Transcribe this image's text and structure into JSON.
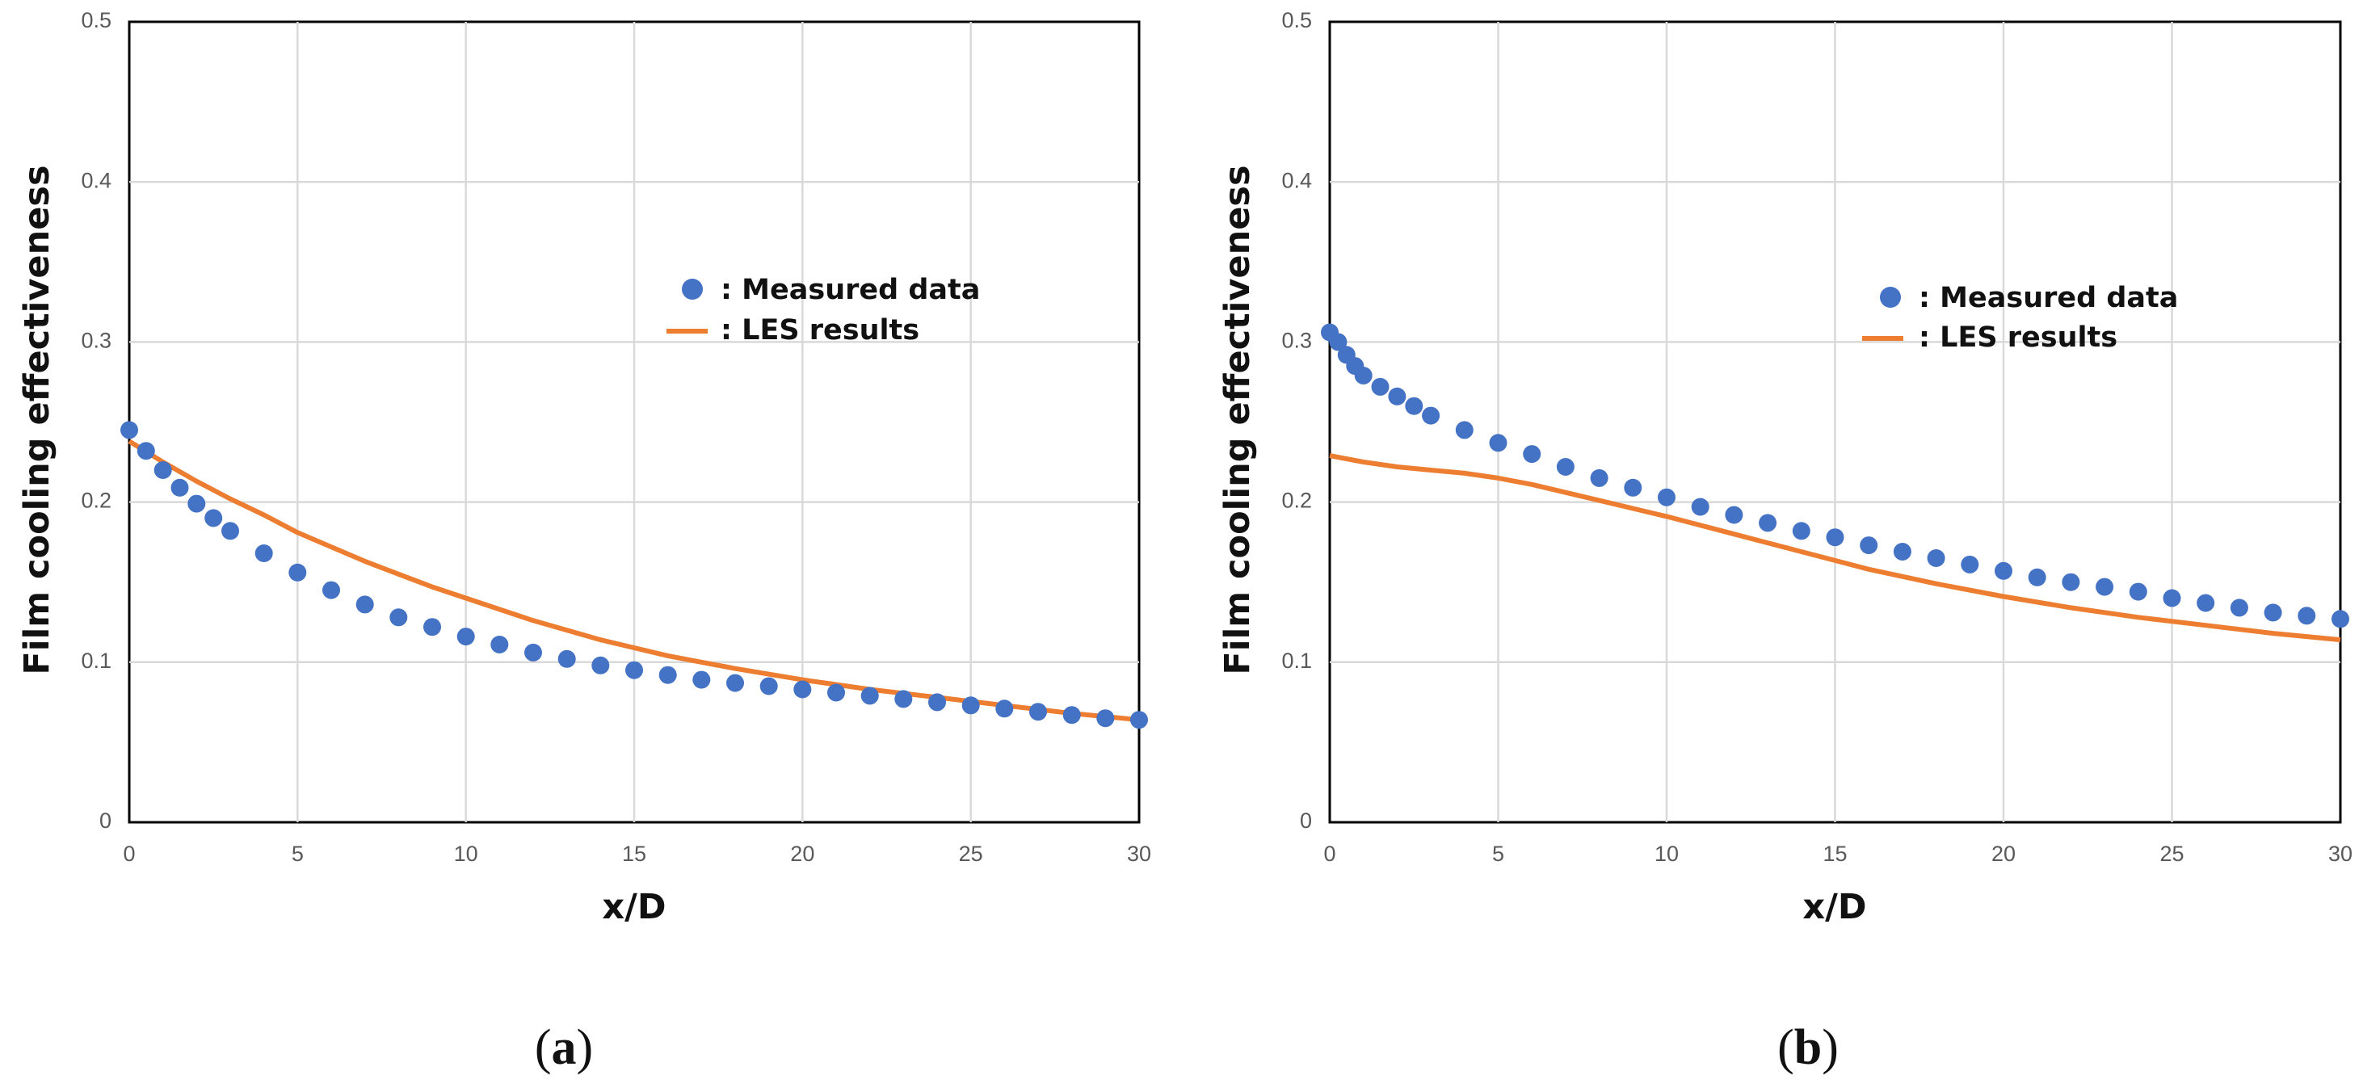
{
  "chart_data": [
    {
      "type": "scatter",
      "panel_label": {
        "open": "(",
        "letter": "a",
        "close": ")"
      },
      "xlabel": "x/D",
      "ylabel": "Film cooling effectiveness",
      "xlim": [
        0,
        30
      ],
      "ylim": [
        0,
        0.5
      ],
      "xticks": [
        "0",
        "5",
        "10",
        "15",
        "20",
        "25",
        "30"
      ],
      "yticks": [
        "0",
        "0.1",
        "0.2",
        "0.3",
        "0.4",
        "0.5"
      ],
      "grid": true,
      "legend_position": "center-right",
      "series": [
        {
          "name": ": Measured data",
          "kind": "scatter",
          "color": "#4472C4",
          "x": [
            0,
            0.5,
            1,
            1.5,
            2,
            2.5,
            3,
            4,
            5,
            6,
            7,
            8,
            9,
            10,
            11,
            12,
            13,
            14,
            15,
            16,
            17,
            18,
            19,
            20,
            21,
            22,
            23,
            24,
            25,
            26,
            27,
            28,
            29,
            30
          ],
          "y": [
            0.245,
            0.232,
            0.22,
            0.209,
            0.199,
            0.19,
            0.182,
            0.168,
            0.156,
            0.145,
            0.136,
            0.128,
            0.122,
            0.116,
            0.111,
            0.106,
            0.102,
            0.098,
            0.095,
            0.092,
            0.089,
            0.087,
            0.085,
            0.083,
            0.081,
            0.079,
            0.077,
            0.075,
            0.073,
            0.071,
            0.069,
            0.067,
            0.065,
            0.064
          ]
        },
        {
          "name": ": LES results",
          "kind": "line",
          "color": "#ED7D31",
          "x": [
            0,
            1,
            2,
            3,
            4,
            5,
            6,
            7,
            8,
            9,
            10,
            12,
            14,
            16,
            18,
            20,
            22,
            24,
            26,
            28,
            30
          ],
          "y": [
            0.238,
            0.225,
            0.213,
            0.202,
            0.192,
            0.181,
            0.172,
            0.163,
            0.155,
            0.147,
            0.14,
            0.126,
            0.114,
            0.104,
            0.096,
            0.089,
            0.083,
            0.078,
            0.073,
            0.068,
            0.064
          ]
        }
      ]
    },
    {
      "type": "scatter",
      "panel_label": {
        "open": "(",
        "letter": "b",
        "close": ")"
      },
      "xlabel": "x/D",
      "ylabel": "Film cooling effectiveness",
      "xlim": [
        0,
        30
      ],
      "ylim": [
        0,
        0.5
      ],
      "xticks": [
        "0",
        "5",
        "10",
        "15",
        "20",
        "25",
        "30"
      ],
      "yticks": [
        "0",
        "0.1",
        "0.2",
        "0.3",
        "0.4",
        "0.5"
      ],
      "grid": true,
      "legend_position": "center-right",
      "series": [
        {
          "name": ": Measured data",
          "kind": "scatter",
          "color": "#4472C4",
          "x": [
            0,
            0.25,
            0.5,
            0.75,
            1,
            1.5,
            2,
            2.5,
            3,
            4,
            5,
            6,
            7,
            8,
            9,
            10,
            11,
            12,
            13,
            14,
            15,
            16,
            17,
            18,
            19,
            20,
            21,
            22,
            23,
            24,
            25,
            26,
            27,
            28,
            29,
            30
          ],
          "y": [
            0.306,
            0.3,
            0.292,
            0.285,
            0.279,
            0.272,
            0.266,
            0.26,
            0.254,
            0.245,
            0.237,
            0.23,
            0.222,
            0.215,
            0.209,
            0.203,
            0.197,
            0.192,
            0.187,
            0.182,
            0.178,
            0.173,
            0.169,
            0.165,
            0.161,
            0.157,
            0.153,
            0.15,
            0.147,
            0.144,
            0.14,
            0.137,
            0.134,
            0.131,
            0.129,
            0.127
          ]
        },
        {
          "name": ": LES results",
          "kind": "line",
          "color": "#ED7D31",
          "x": [
            0,
            1,
            2,
            3,
            4,
            5,
            6,
            7,
            8,
            9,
            10,
            12,
            14,
            16,
            18,
            20,
            22,
            24,
            26,
            28,
            30
          ],
          "y": [
            0.229,
            0.225,
            0.222,
            0.22,
            0.218,
            0.215,
            0.211,
            0.206,
            0.201,
            0.196,
            0.191,
            0.18,
            0.169,
            0.158,
            0.149,
            0.141,
            0.134,
            0.128,
            0.123,
            0.118,
            0.114
          ]
        }
      ]
    }
  ]
}
